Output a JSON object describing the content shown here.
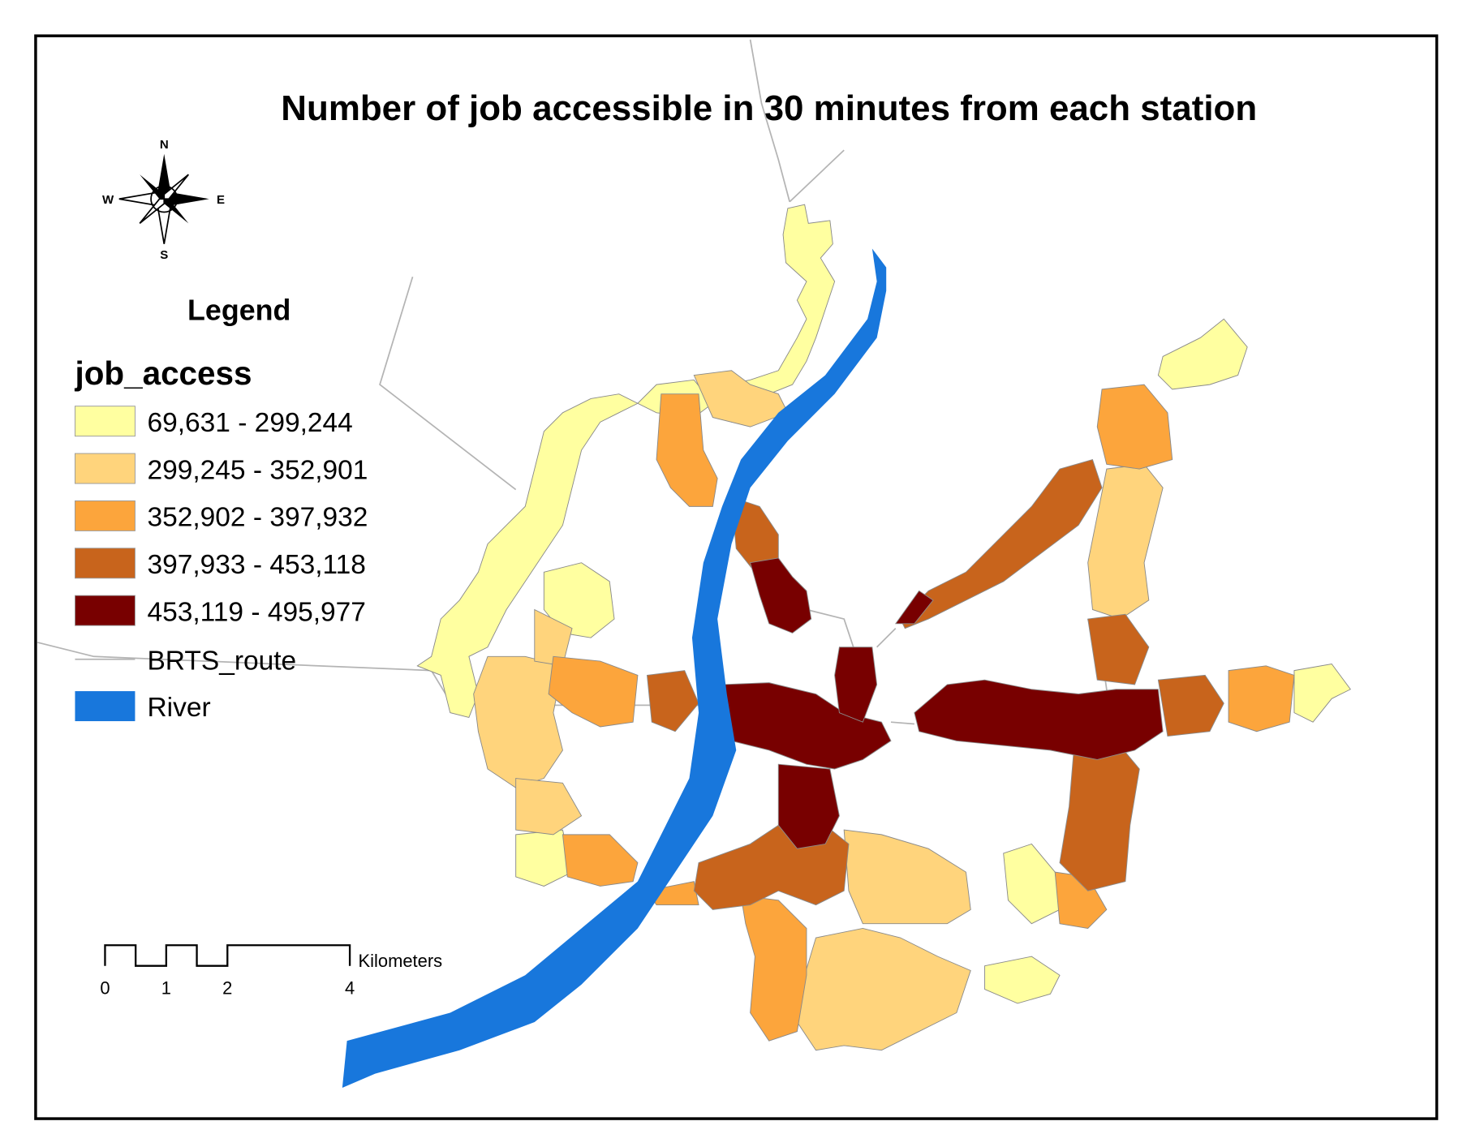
{
  "title": "Number of job accessible in 30 minutes from each station",
  "compass": {
    "n": "N",
    "e": "E",
    "s": "S",
    "w": "W"
  },
  "legend": {
    "title": "Legend",
    "field": "job_access",
    "classes": [
      {
        "label": "69,631 - 299,244",
        "color": "#ffffa0"
      },
      {
        "label": "299,245 - 352,901",
        "color": "#ffd47c"
      },
      {
        "label": "352,902 - 397,932",
        "color": "#fca53c"
      },
      {
        "label": "397,933 - 453,118",
        "color": "#c8641c"
      },
      {
        "label": "453,119 - 495,977",
        "color": "#780000"
      }
    ],
    "route": {
      "label": "BRTS_route",
      "color": "#b4b4b4"
    },
    "river": {
      "label": "River",
      "color": "#1877dc"
    }
  },
  "scale_bar": {
    "unit": "Kilometers",
    "ticks": [
      0,
      1,
      2,
      4
    ]
  }
}
